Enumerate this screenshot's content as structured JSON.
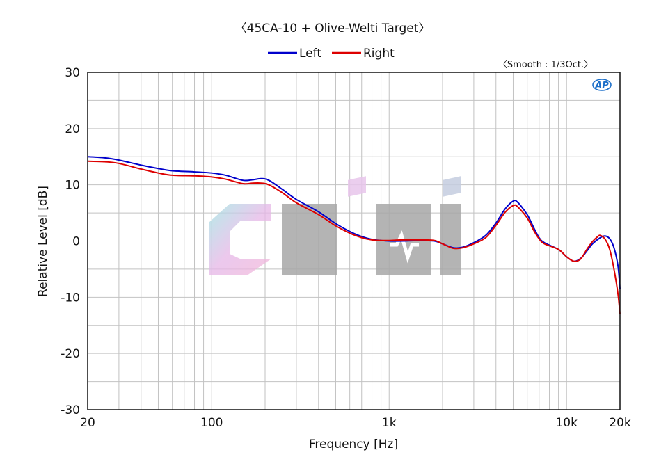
{
  "chart_data": {
    "type": "line",
    "title": "〈45CA-10 + Olive-Welti Target〉",
    "subtitle": "〈Smooth : 1/3Oct.〉",
    "xlabel": "Frequency [Hz]",
    "ylabel": "Relative Level [dB]",
    "x_scale": "log",
    "xlim": [
      20,
      20000
    ],
    "ylim": [
      -30,
      30
    ],
    "x_ticks": [
      {
        "value": 20,
        "label": "20"
      },
      {
        "value": 100,
        "label": "100"
      },
      {
        "value": 1000,
        "label": "1k"
      },
      {
        "value": 10000,
        "label": "10k"
      },
      {
        "value": 20000,
        "label": "20k"
      }
    ],
    "y_ticks": [
      {
        "value": 30,
        "label": "30"
      },
      {
        "value": 20,
        "label": "20"
      },
      {
        "value": 10,
        "label": "10"
      },
      {
        "value": 0,
        "label": "0"
      },
      {
        "value": -10,
        "label": "-10"
      },
      {
        "value": -20,
        "label": "-20"
      },
      {
        "value": -30,
        "label": "-30"
      }
    ],
    "grid": true,
    "legend_position": "top-center",
    "series": [
      {
        "name": "Left",
        "color": "#0000cc",
        "points": [
          [
            20,
            15.0
          ],
          [
            25,
            14.8
          ],
          [
            30,
            14.4
          ],
          [
            40,
            13.5
          ],
          [
            50,
            12.9
          ],
          [
            60,
            12.5
          ],
          [
            80,
            12.3
          ],
          [
            100,
            12.1
          ],
          [
            120,
            11.7
          ],
          [
            150,
            10.8
          ],
          [
            170,
            10.9
          ],
          [
            190,
            11.1
          ],
          [
            210,
            10.8
          ],
          [
            250,
            9.2
          ],
          [
            300,
            7.4
          ],
          [
            400,
            5.2
          ],
          [
            500,
            3.1
          ],
          [
            600,
            1.7
          ],
          [
            700,
            0.8
          ],
          [
            800,
            0.3
          ],
          [
            900,
            0.1
          ],
          [
            1000,
            0.0
          ],
          [
            1200,
            0.0
          ],
          [
            1500,
            0.1
          ],
          [
            1800,
            0.0
          ],
          [
            2000,
            -0.5
          ],
          [
            2300,
            -1.2
          ],
          [
            2600,
            -1.1
          ],
          [
            3000,
            -0.3
          ],
          [
            3500,
            1.0
          ],
          [
            4000,
            3.2
          ],
          [
            4500,
            5.7
          ],
          [
            5000,
            7.1
          ],
          [
            5300,
            6.9
          ],
          [
            6000,
            4.7
          ],
          [
            6500,
            2.5
          ],
          [
            7000,
            0.6
          ],
          [
            7500,
            -0.3
          ],
          [
            9000,
            -1.5
          ],
          [
            10000,
            -2.8
          ],
          [
            11000,
            -3.6
          ],
          [
            12000,
            -3.1
          ],
          [
            13000,
            -1.8
          ],
          [
            14000,
            -0.5
          ],
          [
            15500,
            0.6
          ],
          [
            16500,
            0.9
          ],
          [
            17500,
            0.4
          ],
          [
            18500,
            -1.2
          ],
          [
            19500,
            -4.5
          ],
          [
            20000,
            -8.5
          ]
        ]
      },
      {
        "name": "Right",
        "color": "#dd0000",
        "points": [
          [
            20,
            14.2
          ],
          [
            25,
            14.1
          ],
          [
            30,
            13.8
          ],
          [
            40,
            12.8
          ],
          [
            50,
            12.1
          ],
          [
            60,
            11.7
          ],
          [
            80,
            11.6
          ],
          [
            100,
            11.4
          ],
          [
            120,
            11.0
          ],
          [
            150,
            10.2
          ],
          [
            170,
            10.3
          ],
          [
            190,
            10.3
          ],
          [
            210,
            10.0
          ],
          [
            250,
            8.6
          ],
          [
            300,
            6.8
          ],
          [
            400,
            4.7
          ],
          [
            500,
            2.7
          ],
          [
            600,
            1.4
          ],
          [
            700,
            0.6
          ],
          [
            800,
            0.2
          ],
          [
            900,
            0.1
          ],
          [
            1000,
            0.1
          ],
          [
            1200,
            0.2
          ],
          [
            1500,
            0.2
          ],
          [
            1800,
            0.1
          ],
          [
            2000,
            -0.5
          ],
          [
            2300,
            -1.3
          ],
          [
            2600,
            -1.2
          ],
          [
            3000,
            -0.5
          ],
          [
            3500,
            0.6
          ],
          [
            4000,
            2.8
          ],
          [
            4500,
            5.1
          ],
          [
            5000,
            6.3
          ],
          [
            5300,
            6.1
          ],
          [
            6000,
            4.1
          ],
          [
            6500,
            2.0
          ],
          [
            7000,
            0.4
          ],
          [
            7500,
            -0.5
          ],
          [
            9000,
            -1.5
          ],
          [
            10000,
            -2.8
          ],
          [
            11000,
            -3.6
          ],
          [
            12000,
            -3.2
          ],
          [
            13000,
            -1.5
          ],
          [
            14000,
            -0.1
          ],
          [
            15000,
            0.8
          ],
          [
            15500,
            1.0
          ],
          [
            16500,
            0.3
          ],
          [
            17500,
            -1.5
          ],
          [
            18500,
            -5.0
          ],
          [
            19500,
            -9.5
          ],
          [
            20000,
            -13.0
          ]
        ]
      }
    ],
    "watermark": {
      "text": "Ciii"
    },
    "logo": {
      "text": "AP"
    }
  }
}
